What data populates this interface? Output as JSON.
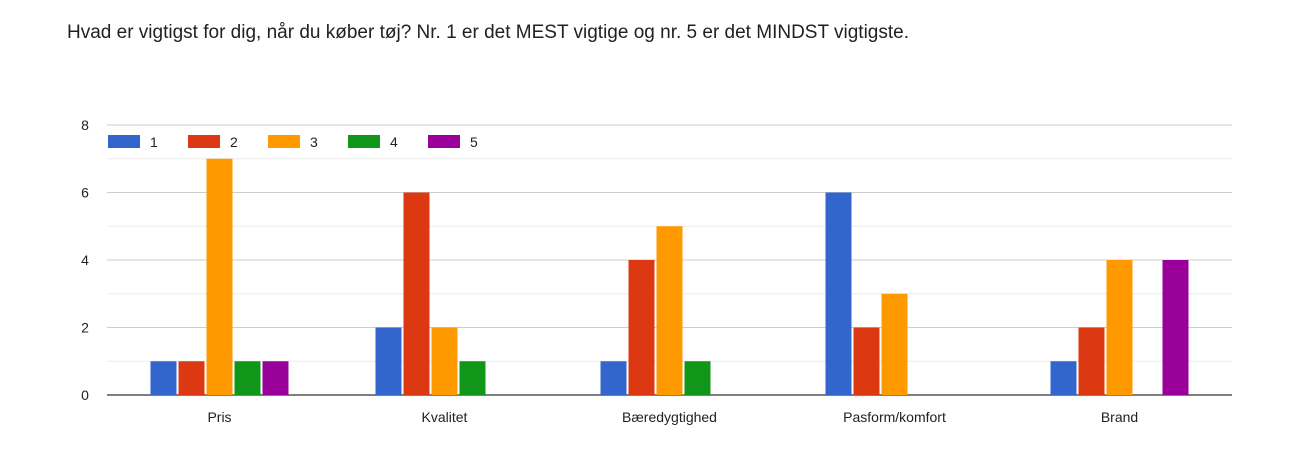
{
  "question": "Hvad er vigtigst for dig, når du køber tøj? Nr. 1 er det MEST vigtige og nr. 5 er det MINDST vigtigste.",
  "chart_data": {
    "type": "bar",
    "categories": [
      "Pris",
      "Kvalitet",
      "Bæredygtighed",
      "Pasform/komfort",
      "Brand"
    ],
    "series": [
      {
        "name": "1",
        "color": "#3366cc",
        "values": [
          1,
          2,
          1,
          6,
          1
        ]
      },
      {
        "name": "2",
        "color": "#dc3912",
        "values": [
          1,
          6,
          4,
          2,
          2
        ]
      },
      {
        "name": "3",
        "color": "#ff9900",
        "values": [
          7,
          2,
          5,
          3,
          4
        ]
      },
      {
        "name": "4",
        "color": "#109618",
        "values": [
          1,
          1,
          1,
          0,
          0
        ]
      },
      {
        "name": "5",
        "color": "#990099",
        "values": [
          1,
          0,
          0,
          0,
          4
        ]
      }
    ],
    "ylim": [
      0,
      8
    ],
    "yticks": [
      0,
      2,
      4,
      6,
      8
    ],
    "grid": true,
    "legend": "top-left"
  }
}
